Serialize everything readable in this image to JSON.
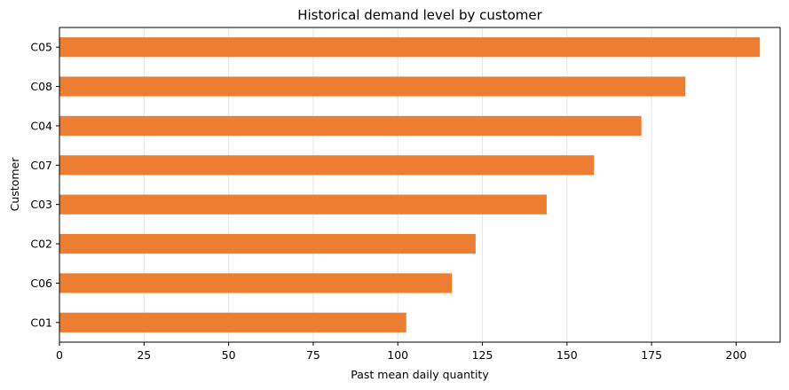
{
  "chart_data": {
    "type": "bar",
    "orientation": "horizontal",
    "title": "Historical demand level by customer",
    "xlabel": "Past mean daily quantity",
    "ylabel": "Customer",
    "categories": [
      "C05",
      "C08",
      "C04",
      "C07",
      "C03",
      "C02",
      "C06",
      "C01"
    ],
    "values": [
      207,
      185,
      172,
      158,
      144,
      123,
      116,
      102.5
    ],
    "xlim": [
      0,
      213
    ],
    "xticks": [
      0,
      25,
      50,
      75,
      100,
      125,
      150,
      175,
      200
    ],
    "grid": "vertical",
    "bar_color": "#ed7d31"
  }
}
